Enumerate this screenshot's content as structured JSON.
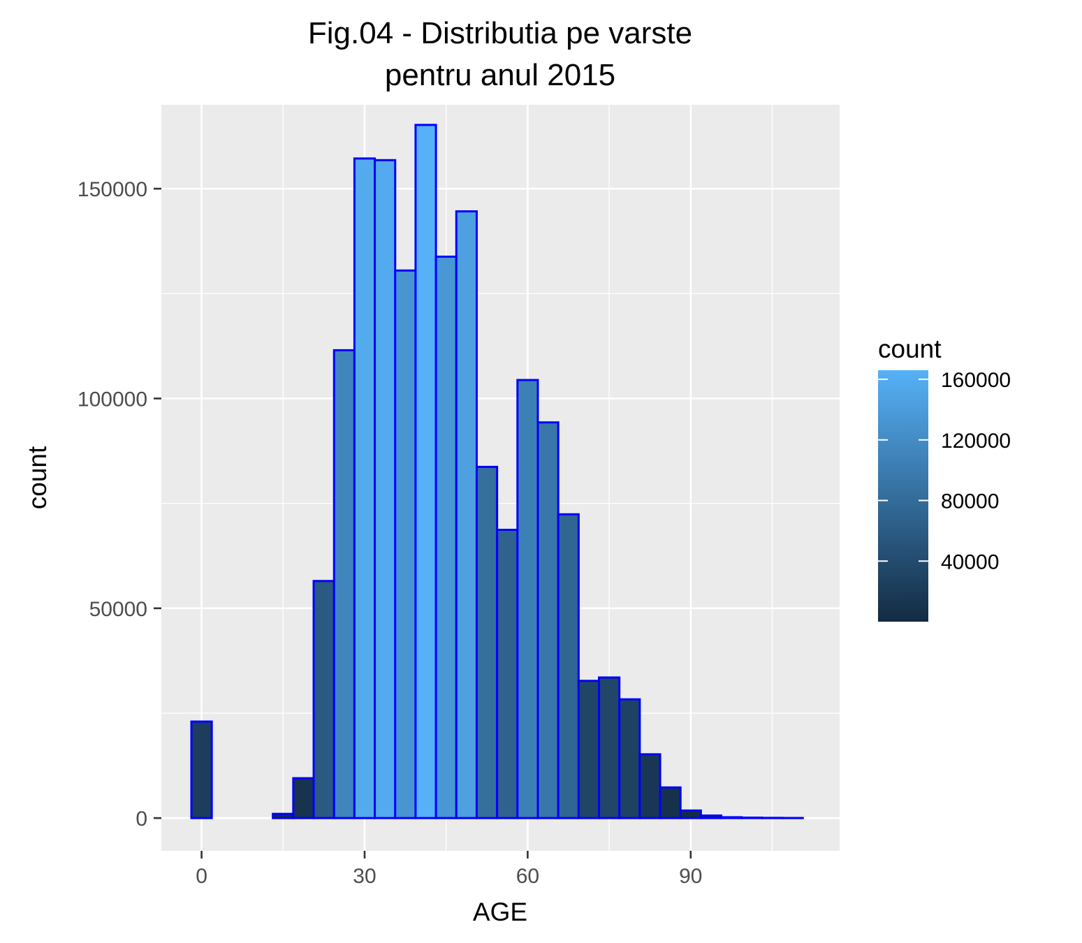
{
  "chart_data": {
    "type": "bar",
    "title_lines": [
      "Fig.04 - Distributia pe varste",
      "pentru anul 2015"
    ],
    "xlabel": "AGE",
    "ylabel": "count",
    "x_ticks": [
      0,
      30,
      60,
      90
    ],
    "y_ticks": [
      0,
      50000,
      100000,
      150000
    ],
    "xlim": [
      -7.4,
      117.4
    ],
    "ylim": [
      -7800,
      170000
    ],
    "bin_width": 3.75,
    "bin_centers": [
      0,
      3.75,
      7.5,
      11.25,
      15,
      18.75,
      22.5,
      26.25,
      30,
      33.75,
      37.5,
      41.25,
      45,
      48.75,
      52.5,
      56.25,
      60,
      63.75,
      67.5,
      71.25,
      75,
      78.75,
      82.5,
      86.25,
      90,
      93.75,
      97.5,
      101.25,
      105,
      108.75
    ],
    "values": [
      23000,
      0,
      0,
      0,
      1000,
      9500,
      56500,
      111500,
      157200,
      156800,
      130500,
      165200,
      133800,
      144600,
      83700,
      68700,
      104400,
      94300,
      72400,
      32700,
      33500,
      28300,
      15200,
      7300,
      1800,
      600,
      200,
      100,
      50,
      20
    ],
    "grid": true,
    "bar_outline_color": "#0000ff",
    "background_color": "#ebebeb",
    "gridline_color": "#ffffff",
    "color_scale": {
      "low": "#132b43",
      "high": "#56b1f7"
    },
    "legend": {
      "title": "count",
      "placement": "right",
      "range": [
        0,
        166000
      ],
      "breaks": [
        40000,
        80000,
        120000,
        160000
      ],
      "labels": [
        "40000",
        "80000",
        "120000",
        "160000"
      ]
    }
  }
}
